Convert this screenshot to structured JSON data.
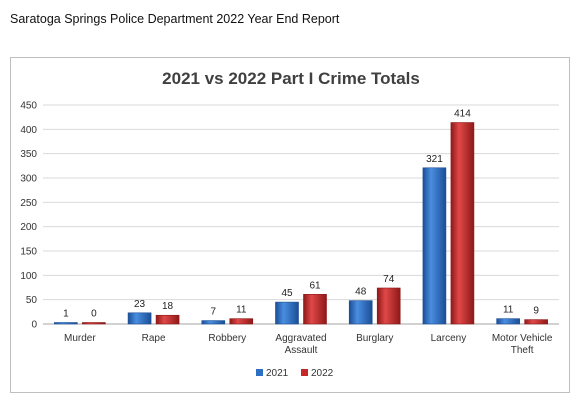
{
  "page": {
    "header": "Saratoga Springs Police Department 2022 Year End Report"
  },
  "colors": {
    "s2021": "#2e6fc4",
    "s2021_dark": "#1a4e96",
    "s2022": "#c62828",
    "s2022_dark": "#8e1818",
    "grid": "#d9d9d9",
    "axis": "#a6a6a6"
  },
  "chart_data": {
    "type": "bar",
    "title": "2021 vs 2022 Part I Crime Totals",
    "xlabel": "",
    "ylabel": "",
    "ylim": [
      0,
      450
    ],
    "yticks": [
      0,
      50,
      100,
      150,
      200,
      250,
      300,
      350,
      400,
      450
    ],
    "grid": true,
    "legend_position": "bottom",
    "categories": [
      [
        "Murder"
      ],
      [
        "Rape"
      ],
      [
        "Robbery"
      ],
      [
        "Aggravated",
        "Assault"
      ],
      [
        "Burglary"
      ],
      [
        "Larceny"
      ],
      [
        "Motor Vehicle",
        "Theft"
      ]
    ],
    "series": [
      {
        "name": "2021",
        "values": [
          1,
          23,
          7,
          45,
          48,
          321,
          11
        ]
      },
      {
        "name": "2022",
        "values": [
          0,
          18,
          11,
          61,
          74,
          414,
          9
        ]
      }
    ]
  }
}
